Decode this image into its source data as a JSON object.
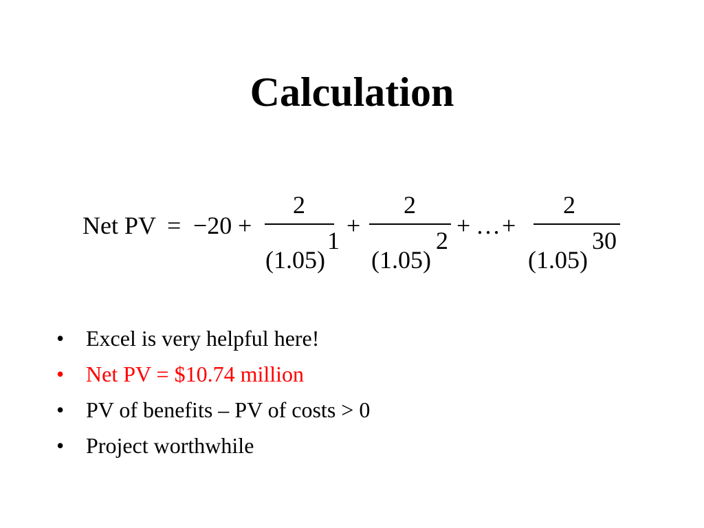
{
  "slide": {
    "title": "Calculation",
    "equation": {
      "lhs": "Net PV",
      "equals": "=",
      "initial": "−20",
      "plus": "+",
      "ellipsis": "…",
      "terms": [
        {
          "numerator": "2",
          "denominator": "(1.05)",
          "exponent": "1"
        },
        {
          "numerator": "2",
          "denominator": "(1.05)",
          "exponent": "2"
        },
        {
          "numerator": "2",
          "denominator": "(1.05)",
          "exponent": "30"
        }
      ]
    },
    "bullet_symbol": "•",
    "bullets": [
      {
        "text": "Excel is very helpful here!",
        "color": "#000000"
      },
      {
        "text": "Net PV = $10.74 million",
        "color": "#ff0000"
      },
      {
        "text": "PV of benefits – PV of costs  > 0",
        "color": "#000000"
      },
      {
        "text": "Project worthwhile",
        "color": "#000000"
      }
    ]
  }
}
